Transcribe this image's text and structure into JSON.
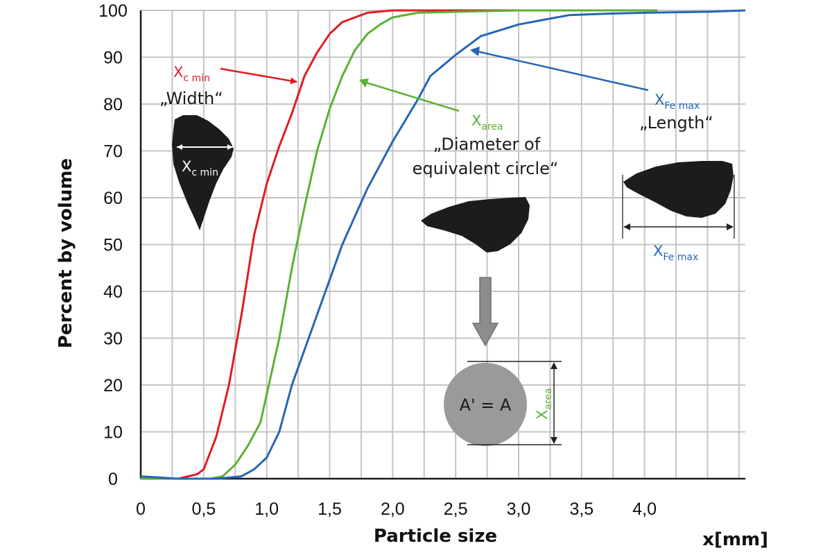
{
  "chart_data": {
    "type": "line",
    "ylabel": "Percent by volume",
    "xlabel": "Particle size",
    "xunit": "x[mm]",
    "xlim": [
      0,
      4.8
    ],
    "ylim": [
      0,
      100
    ],
    "x_ticks": [
      "0",
      "0,5",
      "1,0",
      "1,5",
      "2,0",
      "2,5",
      "3,0",
      "3,5",
      "4,0"
    ],
    "x_tick_values": [
      0,
      0.5,
      1.0,
      1.5,
      2.0,
      2.5,
      3.0,
      3.5,
      4.0
    ],
    "y_ticks": [
      "0",
      "10",
      "20",
      "30",
      "40",
      "50",
      "60",
      "70",
      "80",
      "90",
      "100"
    ],
    "y_tick_values": [
      0,
      10,
      20,
      30,
      40,
      50,
      60,
      70,
      80,
      90,
      100
    ],
    "grid": true,
    "series": [
      {
        "color": "#e01b24",
        "points": [
          [
            0,
            0
          ],
          [
            0.3,
            0
          ],
          [
            0.45,
            1
          ],
          [
            0.5,
            2
          ],
          [
            0.6,
            9
          ],
          [
            0.7,
            20
          ],
          [
            0.8,
            35
          ],
          [
            0.9,
            52
          ],
          [
            1.0,
            63
          ],
          [
            1.1,
            71
          ],
          [
            1.2,
            78
          ],
          [
            1.3,
            86
          ],
          [
            1.4,
            91
          ],
          [
            1.5,
            95
          ],
          [
            1.6,
            97.5
          ],
          [
            1.8,
            99.5
          ],
          [
            2.0,
            100
          ],
          [
            2.5,
            100
          ],
          [
            3.0,
            100
          ],
          [
            3.5,
            100
          ],
          [
            4.0,
            100
          ],
          [
            4.1,
            100
          ]
        ]
      },
      {
        "color": "#5bb033",
        "points": [
          [
            0,
            0
          ],
          [
            0.3,
            0
          ],
          [
            0.55,
            0
          ],
          [
            0.65,
            0.5
          ],
          [
            0.75,
            3
          ],
          [
            0.85,
            7
          ],
          [
            0.95,
            12
          ],
          [
            1.0,
            18
          ],
          [
            1.1,
            30
          ],
          [
            1.2,
            45
          ],
          [
            1.3,
            58
          ],
          [
            1.4,
            70
          ],
          [
            1.5,
            79
          ],
          [
            1.6,
            86
          ],
          [
            1.7,
            91.5
          ],
          [
            1.8,
            95
          ],
          [
            1.9,
            97
          ],
          [
            2.0,
            98.5
          ],
          [
            2.2,
            99.5
          ],
          [
            2.5,
            99.7
          ],
          [
            3.0,
            100
          ],
          [
            3.5,
            100
          ],
          [
            4.0,
            100
          ],
          [
            4.1,
            100
          ]
        ]
      },
      {
        "color": "#2566b5",
        "points": [
          [
            0,
            0.5
          ],
          [
            0.3,
            0
          ],
          [
            0.6,
            0
          ],
          [
            0.8,
            0.5
          ],
          [
            0.9,
            2
          ],
          [
            1.0,
            4.5
          ],
          [
            1.1,
            10
          ],
          [
            1.2,
            20
          ],
          [
            1.4,
            35
          ],
          [
            1.6,
            50
          ],
          [
            1.8,
            62
          ],
          [
            2.0,
            72
          ],
          [
            2.2,
            81
          ],
          [
            2.3,
            86
          ],
          [
            2.5,
            90.5
          ],
          [
            2.7,
            94.5
          ],
          [
            3.0,
            97
          ],
          [
            3.2,
            98
          ],
          [
            3.4,
            99
          ],
          [
            3.7,
            99.3
          ],
          [
            4.0,
            99.5
          ],
          [
            4.5,
            99.7
          ],
          [
            4.8,
            100
          ]
        ]
      }
    ],
    "annotations": {
      "width_symbol": "X",
      "width_symbol_sub": "c min",
      "width_label": "„Width“",
      "width_particle_symbol": "X",
      "width_particle_sub": "c min",
      "area_symbol": "X",
      "area_symbol_sub": "area",
      "area_label_line1": "„Diameter of",
      "area_label_line2": "equivalent circle“",
      "area_particle_label": "A",
      "circle_label": "A' = A",
      "circle_dim_symbol": "X",
      "circle_dim_sub": "area",
      "length_symbol": "X",
      "length_symbol_sub": "Fe max",
      "length_label": "„Length“",
      "length_dim_symbol": "X",
      "length_dim_sub": "Fe max"
    }
  },
  "colors": {
    "red": "#e01b24",
    "green": "#5bb033",
    "blue": "#2566b5",
    "grid": "#c4c4c4",
    "particle": "#1c1c1c",
    "circle": "#9a9a9a",
    "arrow_gray": "#8d8d8d"
  }
}
